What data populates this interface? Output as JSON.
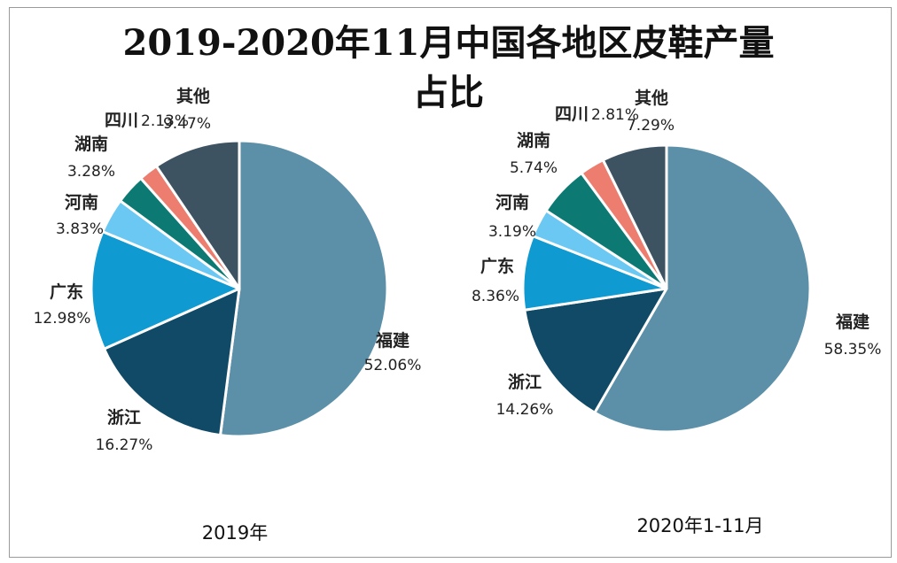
{
  "title_line1": "2019-2020年11月中国各地区皮鞋产量",
  "title_line2": "占比",
  "chart_data": [
    {
      "type": "pie",
      "caption": "2019年",
      "slices": [
        {
          "name": "福建",
          "value": 52.06,
          "label": "52.06%",
          "color": "#5b90a8"
        },
        {
          "name": "浙江",
          "value": 16.27,
          "label": "16.27%",
          "color": "#104a66"
        },
        {
          "name": "广东",
          "value": 12.98,
          "label": "12.98%",
          "color": "#0f9ad2"
        },
        {
          "name": "河南",
          "value": 3.83,
          "label": "3.83%",
          "color": "#6bc8f2"
        },
        {
          "name": "湖南",
          "value": 3.28,
          "label": "3.28%",
          "color": "#0c7a73"
        },
        {
          "name": "四川",
          "value": 2.13,
          "label": "2.13%",
          "color": "#ec7d6f"
        },
        {
          "name": "其他",
          "value": 9.47,
          "label": "9.47%",
          "color": "#3e5362"
        }
      ]
    },
    {
      "type": "pie",
      "caption": "2020年1-11月",
      "slices": [
        {
          "name": "福建",
          "value": 58.35,
          "label": "58.35%",
          "color": "#5b90a8"
        },
        {
          "name": "浙江",
          "value": 14.26,
          "label": "14.26%",
          "color": "#104a66"
        },
        {
          "name": "广东",
          "value": 8.36,
          "label": "8.36%",
          "color": "#0f9ad2"
        },
        {
          "name": "河南",
          "value": 3.19,
          "label": "3.19%",
          "color": "#6bc8f2"
        },
        {
          "name": "湖南",
          "value": 5.74,
          "label": "5.74%",
          "color": "#0c7a73"
        },
        {
          "name": "四川",
          "value": 2.81,
          "label": "2.81%",
          "color": "#ec7d6f"
        },
        {
          "name": "其他",
          "value": 7.29,
          "label": "7.29%",
          "color": "#3e5362"
        }
      ]
    }
  ]
}
